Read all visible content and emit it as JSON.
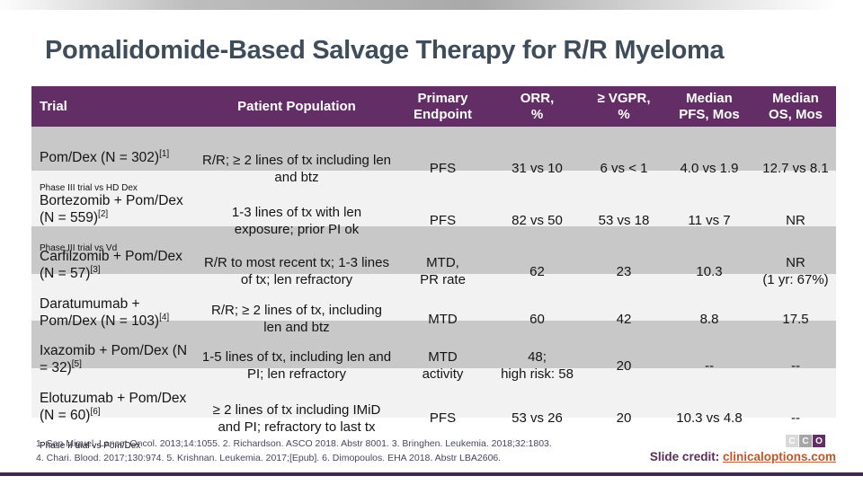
{
  "title": "Pomalidomide-Based Salvage Therapy for R/R Myeloma",
  "table": {
    "headers": [
      "Trial",
      "Patient Population",
      "Primary\nEndpoint",
      "ORR,\n%",
      "≥ VGPR,\n%",
      "Median\nPFS, Mos",
      "Median\nOS, Mos"
    ],
    "rows": [
      {
        "trial": "Pom/Dex (N = 302)",
        "ref": "[1]",
        "sub": "Phase III trial vs HD Dex",
        "population": "R/R; ≥ 2 lines of tx including len and btz",
        "endpoint": "PFS",
        "orr": "31 vs 10",
        "vgpr": "6 vs < 1",
        "pfs": "4.0 vs 1.9",
        "os": "12.7 vs 8.1"
      },
      {
        "trial": "Bortezomib + Pom/Dex (N = 559)",
        "ref": "[2]",
        "sub": "Phase III trial vs Vd",
        "population": "1-3 lines of tx with len exposure; prior PI ok",
        "endpoint": "PFS",
        "orr": "82 vs 50",
        "vgpr": "53 vs 18",
        "pfs": "11 vs 7",
        "os": "NR"
      },
      {
        "trial": "Carfilzomib + Pom/Dex (N = 57)",
        "ref": "[3]",
        "sub": "",
        "population": "R/R to most recent tx; 1-3 lines of tx; len refractory",
        "endpoint": "MTD,\nPR rate",
        "orr": "62",
        "vgpr": "23",
        "pfs": "10.3",
        "os": "NR\n(1 yr: 67%)"
      },
      {
        "trial": "Daratumumab + Pom/Dex (N = 103)",
        "ref": "[4]",
        "sub": "",
        "population": "R/R; ≥ 2 lines of tx, including len and btz",
        "endpoint": "MTD",
        "orr": "60",
        "vgpr": "42",
        "pfs": "8.8",
        "os": "17.5"
      },
      {
        "trial": "Ixazomib + Pom/Dex (N = 32)",
        "ref": "[5]",
        "sub": "",
        "population": "1-5 lines of tx, including len and PI; len refractory",
        "endpoint": "MTD\nactivity",
        "orr": "48;\nhigh risk: 58",
        "vgpr": "20",
        "pfs": "--",
        "os": "--"
      },
      {
        "trial": "Elotuzumab + Pom/Dex (N = 60)",
        "ref": "[6]",
        "sub": "Phase II trial vs Pom/Dex",
        "population": "≥ 2 lines of tx including IMiD and PI; refractory to last tx",
        "endpoint": "PFS",
        "orr": "53 vs 26",
        "vgpr": "20",
        "pfs": "10.3 vs 4.8",
        "os": "--"
      }
    ]
  },
  "footer": {
    "references_line1": "1. San Miguel. Lancet Oncol. 2013;14:1055. 2. Richardson. ASCO 2018. Abstr 8001. 3. Bringhen. Leukemia. 2018;32:1803.",
    "references_line2": "4. Chari. Blood. 2017;130:974. 5. Krishnan. Leukemia. 2017;[Epub]. 6. Dimopoulos. EHA 2018. Abstr LBA2606.",
    "credit_label": "Slide credit:",
    "credit_link": "clinicaloptions.com",
    "logo_letter_1": "C",
    "logo_letter_2": "C",
    "logo_letter_3": "O"
  },
  "colors": {
    "header_purple": "#632d66",
    "row_gray": "#c8c8c8",
    "row_light": "#f2f2f2",
    "title_color": "#3f4d5b",
    "link_orange": "#c35427",
    "bottom_bar": "#3c2a50"
  }
}
